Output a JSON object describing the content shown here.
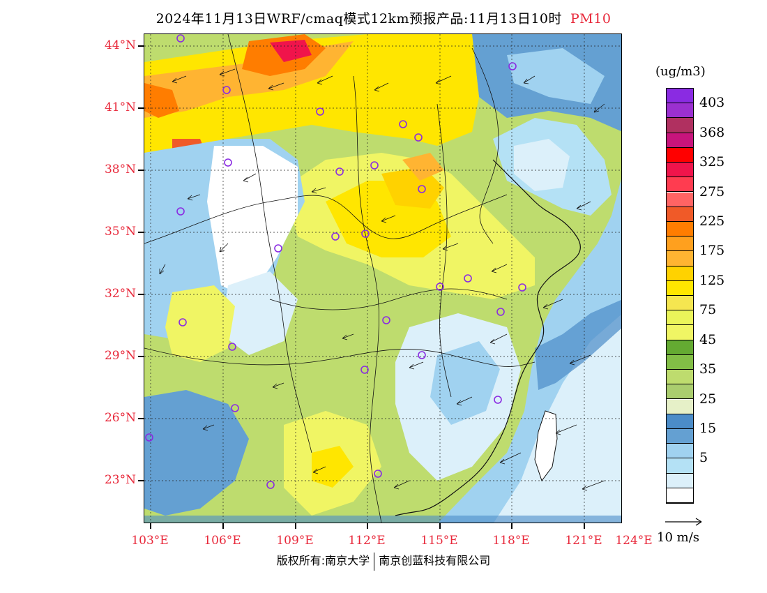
{
  "title": {
    "main": "2024年11月13日WRF/cmaq模式12km预报产品:11月13日10时",
    "pollutant": "PM10"
  },
  "map": {
    "lat_labels": [
      "44°N",
      "41°N",
      "38°N",
      "35°N",
      "32°N",
      "29°N",
      "26°N",
      "23°N"
    ],
    "lon_labels": [
      "103°E",
      "106°E",
      "109°E",
      "112°E",
      "115°E",
      "118°E",
      "121°E",
      "124°E"
    ]
  },
  "colorbar": {
    "unit": "(ug/m3)",
    "segments": [
      {
        "color": "#8a2be2"
      },
      {
        "color": "#9b30d0"
      },
      {
        "color": "#b03060"
      },
      {
        "color": "#c8147c"
      },
      {
        "color": "#ff0000"
      },
      {
        "color": "#f0144b"
      },
      {
        "color": "#ff3c50"
      },
      {
        "color": "#ff6464"
      },
      {
        "color": "#f05a28"
      },
      {
        "color": "#ff7d00"
      },
      {
        "color": "#ffa01e"
      },
      {
        "color": "#ffb432"
      },
      {
        "color": "#ffd200"
      },
      {
        "color": "#ffe600"
      },
      {
        "color": "#f5e650"
      },
      {
        "color": "#ebf55a"
      },
      {
        "color": "#f0f564"
      },
      {
        "color": "#64aa32"
      },
      {
        "color": "#82be46"
      },
      {
        "color": "#bedc6e"
      },
      {
        "color": "#aacd6e"
      },
      {
        "color": "#e6f0c8"
      },
      {
        "color": "#4b8cc8"
      },
      {
        "color": "#64a0d2"
      },
      {
        "color": "#a0d2f0"
      },
      {
        "color": "#b4e1f5"
      },
      {
        "color": "#dcf0fa"
      },
      {
        "color": "#ffffff"
      }
    ],
    "labels": [
      "403",
      "368",
      "325",
      "275",
      "225",
      "175",
      "125",
      "75",
      "45",
      "35",
      "25",
      "15",
      "5"
    ]
  },
  "reference_vector": {
    "label": "10 m/s"
  },
  "footer": {
    "left": "版权所有:南京大学",
    "right": "南京创蓝科技有限公司"
  }
}
